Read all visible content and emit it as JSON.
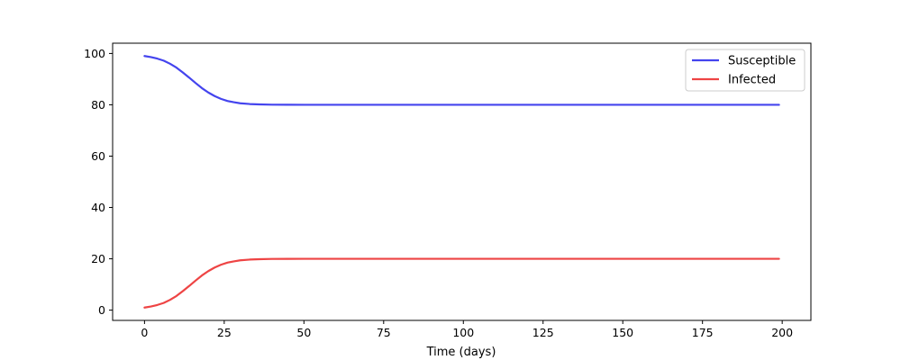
{
  "chart_data": {
    "type": "line",
    "title": "",
    "xlabel": "Time (days)",
    "ylabel": "",
    "xlim": [
      -10,
      209
    ],
    "ylim": [
      -4,
      104
    ],
    "xticks": [
      0,
      25,
      50,
      75,
      100,
      125,
      150,
      175,
      200
    ],
    "yticks": [
      0,
      20,
      40,
      60,
      80,
      100
    ],
    "grid": false,
    "legend_position": "top-right",
    "series": [
      {
        "name": "Susceptible",
        "color": "#4444ee",
        "x": [
          0,
          2,
          4,
          6,
          8,
          10,
          12,
          14,
          16,
          18,
          20,
          22,
          24,
          26,
          28,
          30,
          33,
          36,
          40,
          45,
          50,
          60,
          80,
          100,
          125,
          150,
          175,
          199
        ],
        "y": [
          99.0,
          98.6,
          98.0,
          97.2,
          96.0,
          94.5,
          92.6,
          90.6,
          88.5,
          86.5,
          84.8,
          83.4,
          82.3,
          81.5,
          81.0,
          80.6,
          80.3,
          80.15,
          80.05,
          80.02,
          80.0,
          80.0,
          80.0,
          80.0,
          80.0,
          80.0,
          80.0,
          80.0
        ]
      },
      {
        "name": "Infected",
        "color": "#ee4444",
        "x": [
          0,
          2,
          4,
          6,
          8,
          10,
          12,
          14,
          16,
          18,
          20,
          22,
          24,
          26,
          28,
          30,
          33,
          36,
          40,
          45,
          50,
          60,
          80,
          100,
          125,
          150,
          175,
          199
        ],
        "y": [
          1.0,
          1.4,
          2.0,
          2.8,
          4.0,
          5.5,
          7.4,
          9.4,
          11.5,
          13.5,
          15.2,
          16.6,
          17.7,
          18.5,
          19.0,
          19.4,
          19.7,
          19.85,
          19.95,
          19.98,
          20.0,
          20.0,
          20.0,
          20.0,
          20.0,
          20.0,
          20.0,
          20.0
        ]
      }
    ]
  }
}
